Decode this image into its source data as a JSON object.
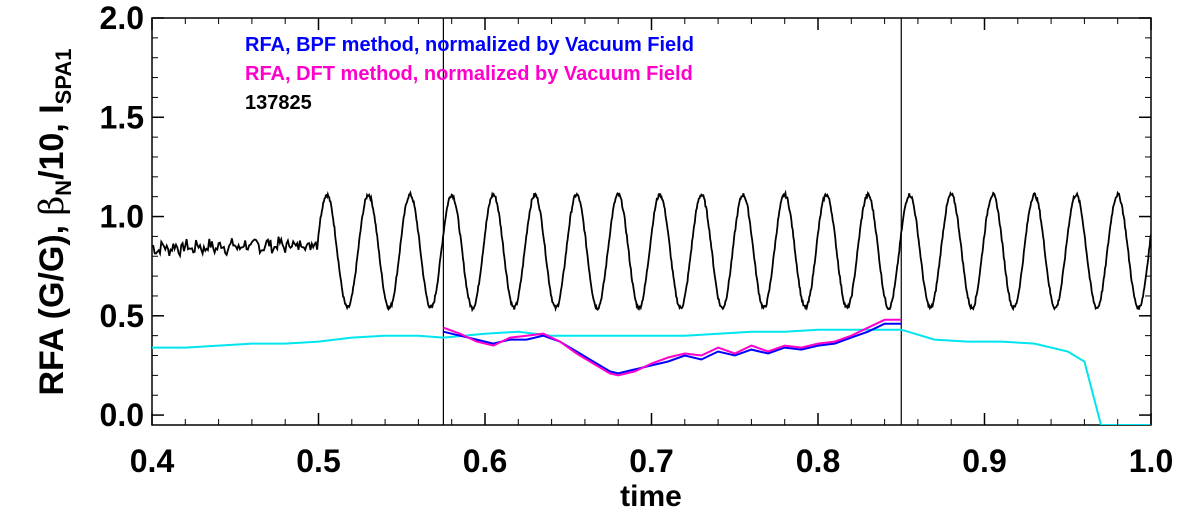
{
  "chart_data": {
    "type": "line",
    "title": "",
    "xlabel": "time",
    "ylabel": {
      "prefix": "RFA (G/G), ",
      "beta": "β",
      "beta_sub": "N",
      "middle": "/10, I",
      "i_sub": "SPA1"
    },
    "xlim": [
      0.4,
      1.0
    ],
    "ylim": [
      -0.05,
      2.0
    ],
    "x_ticks": [
      "0.4",
      "0.5",
      "0.6",
      "0.7",
      "0.8",
      "0.9",
      "1.0"
    ],
    "x_tick_values": [
      0.4,
      0.5,
      0.6,
      0.7,
      0.8,
      0.9,
      1.0
    ],
    "y_ticks": [
      "0.0",
      "0.5",
      "1.0",
      "1.5",
      "2.0"
    ],
    "y_tick_values": [
      0.0,
      0.5,
      1.0,
      1.5,
      2.0
    ],
    "vertical_lines": [
      0.575,
      0.85
    ],
    "legend": [
      {
        "text": "RFA, BPF method, normalized by Vacuum Field",
        "color": "#0000ff"
      },
      {
        "text": "RFA, DFT method, normalized by Vacuum Field",
        "color": "#ff00cc"
      }
    ],
    "annotation": "137825",
    "series": [
      {
        "color": "#0000ff",
        "x": [
          0.575,
          0.585,
          0.595,
          0.605,
          0.615,
          0.625,
          0.635,
          0.645,
          0.655,
          0.665,
          0.675,
          0.68,
          0.69,
          0.7,
          0.71,
          0.72,
          0.73,
          0.74,
          0.75,
          0.76,
          0.77,
          0.78,
          0.79,
          0.8,
          0.81,
          0.82,
          0.83,
          0.84,
          0.85
        ],
        "y": [
          0.42,
          0.4,
          0.38,
          0.36,
          0.38,
          0.38,
          0.4,
          0.37,
          0.32,
          0.27,
          0.22,
          0.21,
          0.23,
          0.25,
          0.27,
          0.3,
          0.28,
          0.32,
          0.3,
          0.33,
          0.31,
          0.34,
          0.33,
          0.35,
          0.36,
          0.39,
          0.42,
          0.46,
          0.46
        ]
      },
      {
        "color": "#ff00cc",
        "x": [
          0.575,
          0.585,
          0.595,
          0.605,
          0.615,
          0.625,
          0.635,
          0.645,
          0.655,
          0.665,
          0.675,
          0.68,
          0.69,
          0.7,
          0.71,
          0.72,
          0.73,
          0.74,
          0.75,
          0.76,
          0.77,
          0.78,
          0.79,
          0.8,
          0.81,
          0.82,
          0.83,
          0.84,
          0.85
        ],
        "y": [
          0.44,
          0.41,
          0.37,
          0.35,
          0.39,
          0.4,
          0.41,
          0.37,
          0.31,
          0.26,
          0.21,
          0.2,
          0.22,
          0.26,
          0.29,
          0.31,
          0.3,
          0.34,
          0.31,
          0.35,
          0.32,
          0.35,
          0.34,
          0.36,
          0.37,
          0.4,
          0.44,
          0.48,
          0.48
        ]
      },
      {
        "color": "#00e5ee",
        "x": [
          0.4,
          0.42,
          0.44,
          0.46,
          0.48,
          0.5,
          0.52,
          0.54,
          0.56,
          0.575,
          0.6,
          0.62,
          0.64,
          0.66,
          0.68,
          0.7,
          0.72,
          0.74,
          0.76,
          0.78,
          0.8,
          0.82,
          0.84,
          0.85,
          0.87,
          0.89,
          0.91,
          0.93,
          0.95,
          0.96,
          0.97,
          0.98,
          1.0
        ],
        "y": [
          0.34,
          0.34,
          0.35,
          0.36,
          0.36,
          0.37,
          0.39,
          0.4,
          0.4,
          0.39,
          0.41,
          0.42,
          0.4,
          0.4,
          0.4,
          0.4,
          0.4,
          0.41,
          0.42,
          0.42,
          0.43,
          0.43,
          0.43,
          0.43,
          0.38,
          0.37,
          0.37,
          0.36,
          0.32,
          0.27,
          -0.05,
          -0.05,
          -0.05
        ]
      },
      {
        "color": "#000000",
        "noisy_segment": {
          "x": [
            0.4,
            0.5
          ],
          "y_start": 0.84,
          "y_end": 0.86,
          "noise": 0.03
        },
        "oscillation": {
          "x_start": 0.5,
          "x_end": 1.0,
          "mean": 0.825,
          "amplitude": 0.285,
          "period": 0.025,
          "phase_peak": 0.505
        }
      }
    ]
  }
}
